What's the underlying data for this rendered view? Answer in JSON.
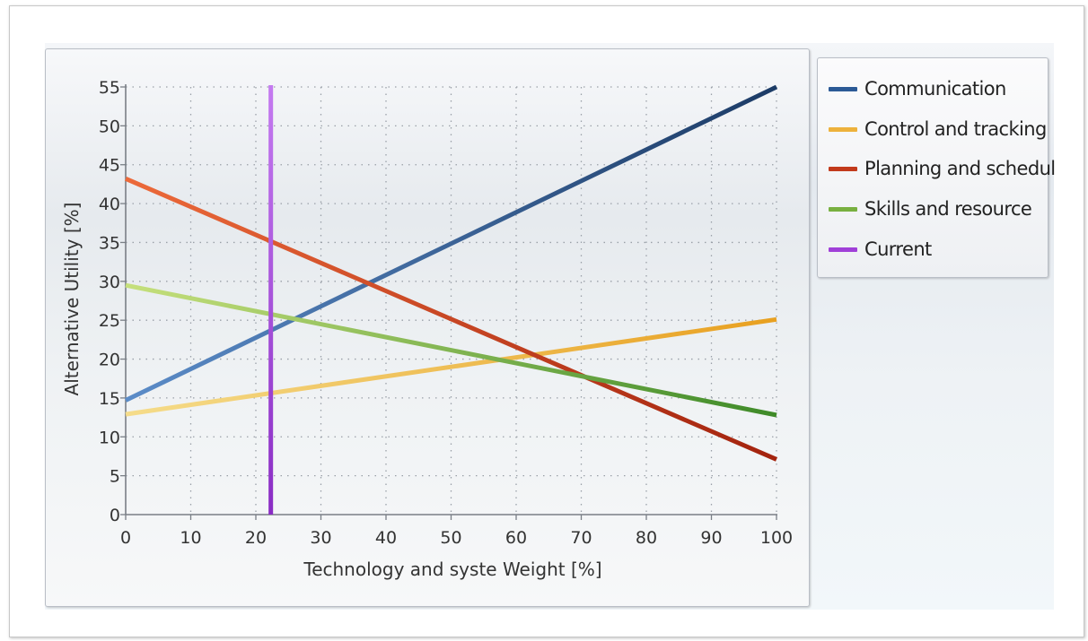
{
  "chart_data": {
    "type": "line",
    "title": "",
    "xlabel": "Technology and syste Weight [%]",
    "ylabel": "Alternative Utility  [%]",
    "xlim": [
      0,
      100
    ],
    "ylim": [
      0,
      55
    ],
    "x_ticks": [
      0,
      10,
      20,
      30,
      40,
      50,
      60,
      70,
      80,
      90,
      100
    ],
    "y_ticks": [
      0,
      5,
      10,
      15,
      20,
      25,
      30,
      35,
      40,
      45,
      50,
      55
    ],
    "grid": true,
    "legend_position": "right",
    "series": [
      {
        "name": "Communication",
        "x": [
          0,
          100
        ],
        "y": [
          14.7,
          55
        ],
        "color_start": "#5b8cc8",
        "color_end": "#1c3b66"
      },
      {
        "name": "Control and tracking",
        "x": [
          0,
          100
        ],
        "y": [
          12.9,
          25.1
        ],
        "color_start": "#f5dc8a",
        "color_end": "#e8a020"
      },
      {
        "name": "Planning and schedul",
        "x": [
          0,
          100
        ],
        "y": [
          43.2,
          7.1
        ],
        "color_start": "#ec6a3a",
        "color_end": "#a3230e"
      },
      {
        "name": "Skills and resource",
        "x": [
          0,
          100
        ],
        "y": [
          29.5,
          12.8
        ],
        "color_start": "#c6e07c",
        "color_end": "#3e8a28"
      }
    ],
    "current_marker": {
      "name": "Current",
      "x": 22.3,
      "color": "#a040d8"
    }
  },
  "legend": {
    "items": [
      {
        "label": "Communication",
        "color": "#2c5a96"
      },
      {
        "label": "Control and tracking",
        "color": "#edb23c"
      },
      {
        "label": "Planning and schedul",
        "color": "#c23a1c"
      },
      {
        "label": "Skills and resource",
        "color": "#78b040"
      },
      {
        "label": "Current",
        "color": "#a040d8"
      }
    ]
  }
}
